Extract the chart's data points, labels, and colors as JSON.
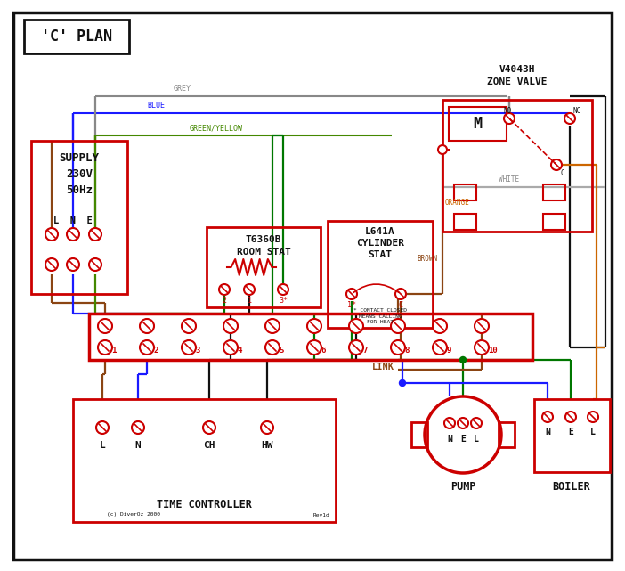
{
  "bg_color": "#ffffff",
  "red": "#cc0000",
  "blue": "#1a1aff",
  "green": "#007700",
  "brown": "#8B4513",
  "grey": "#888888",
  "orange": "#cc6600",
  "black": "#111111",
  "green_yellow": "#448800",
  "title": "'C' PLAN",
  "supply_label": "SUPPLY\n230V\n50Hz",
  "lne_label": "L  N  E",
  "room_stat_label": "T6360B\nROOM STAT",
  "cyl_stat_label": "L641A\nCYLINDER\nSTAT",
  "zone_valve_label": "V4043H\nZONE VALVE",
  "tc_label": "TIME CONTROLLER",
  "pump_label": "PUMP",
  "boiler_label": "BOILER",
  "link_label": "LINK",
  "contact_note": "* CONTACT CLOSED\nMEANS CALLING\nFOR HEAT",
  "wire_grey": "GREY",
  "wire_blue": "BLUE",
  "wire_gy": "GREEN/YELLOW",
  "wire_brown": "BROWN",
  "wire_white": "WHITE",
  "wire_orange": "ORANGE",
  "terminals": [
    "1",
    "2",
    "3",
    "4",
    "5",
    "6",
    "7",
    "8",
    "9",
    "10"
  ],
  "copyright": "(c) DiverOz 2000",
  "rev": "Rev1d"
}
